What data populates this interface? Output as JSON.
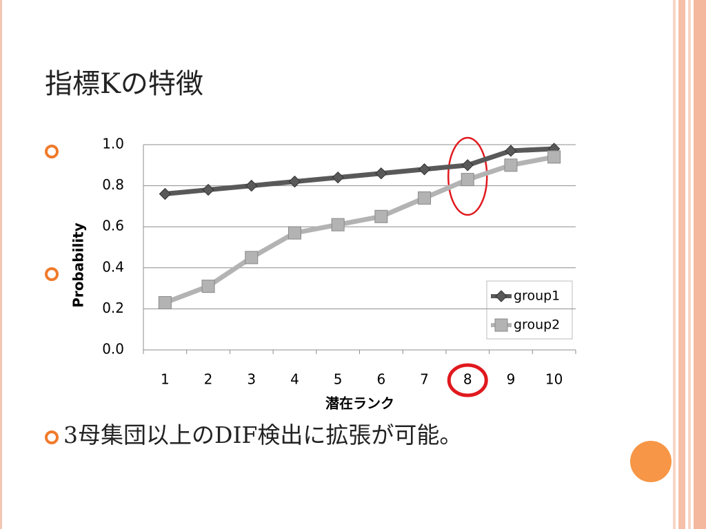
{
  "slide": {
    "title": "指標Kの特徴",
    "bullet_text": "3母集団以上のDIF検出に拡張が可能。"
  },
  "chart_data": {
    "type": "line",
    "x_label": "潜在ランク",
    "y_label": "Probability",
    "categories": [
      "1",
      "2",
      "3",
      "4",
      "5",
      "6",
      "7",
      "8",
      "9",
      "10"
    ],
    "series": [
      {
        "name": "group1",
        "color": "#595959",
        "marker": "diamond",
        "values": [
          0.76,
          0.78,
          0.8,
          0.82,
          0.84,
          0.86,
          0.88,
          0.9,
          0.97,
          0.98
        ]
      },
      {
        "name": "group2",
        "color": "#b3b3b3",
        "marker": "square",
        "values": [
          0.23,
          0.31,
          0.45,
          0.57,
          0.61,
          0.65,
          0.74,
          0.83,
          0.9,
          0.94
        ]
      }
    ],
    "ylim": [
      0,
      1
    ],
    "yticks": [
      {
        "value": 0,
        "label": "0.0"
      },
      0.2,
      0.4,
      0.6,
      0.8,
      {
        "value": 1,
        "label": "1.0"
      }
    ],
    "grid": true,
    "legend": "lower-right"
  }
}
